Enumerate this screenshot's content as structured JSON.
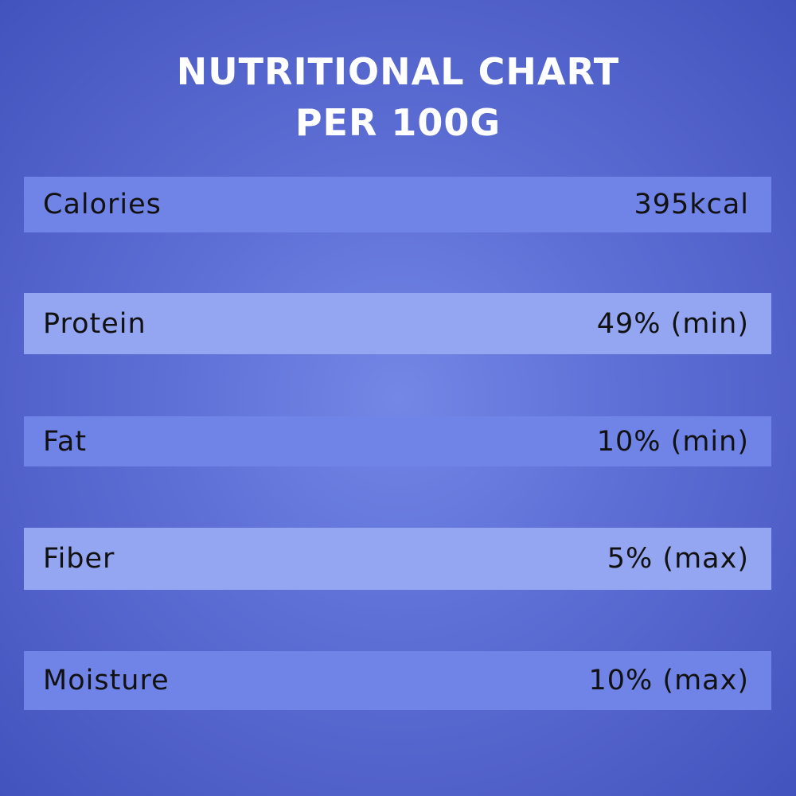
{
  "header": {
    "title_lines": [
      "NUTRITIONAL CHART",
      "PER 100G"
    ]
  },
  "table": {
    "rows": [
      [
        "Calories",
        "395kcal"
      ],
      [
        "Protein",
        "49% (min)"
      ],
      [
        "Fat",
        "10% (min)"
      ],
      [
        "Fiber",
        "5% (max)"
      ],
      [
        "Moisture",
        "10% (max)"
      ]
    ]
  }
}
